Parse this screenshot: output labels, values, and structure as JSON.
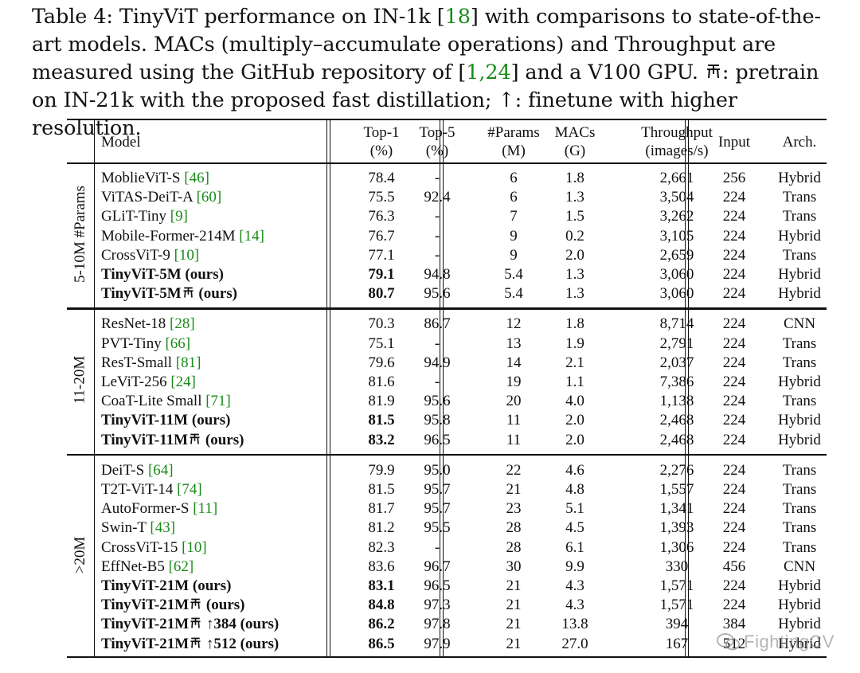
{
  "caption": {
    "p1": "Table 4: TinyViT performance on IN-1k [",
    "ref1": "18",
    "p2": "] with comparisons to state-of-the-art models. MACs (multiply–accumulate operations) and Throughput are measured using the GitHub repository of [",
    "ref2": "1",
    "comma": ",",
    "ref3": "24",
    "p3": "] and a V100 GPU. ",
    "p4": ": pretrain on IN-21k with the proposed fast distillation; ↑: finetune with higher resolution."
  },
  "table": {
    "headers": [
      {
        "line1": "Model",
        "line2": ""
      },
      {
        "line1": "Top-1",
        "line2": "(%)"
      },
      {
        "line1": "Top-5",
        "line2": "(%)"
      },
      {
        "line1": "#Params",
        "line2": "(M)"
      },
      {
        "line1": "MACs",
        "line2": "(G)"
      },
      {
        "line1": "Throughput",
        "line2": "(images/s)"
      },
      {
        "line1": "Input",
        "line2": ""
      },
      {
        "line1": "Arch.",
        "line2": ""
      }
    ],
    "groups": [
      {
        "label": "5-10M #Params",
        "rows": [
          {
            "name": "MoblieViT-S ",
            "ref": "[46]",
            "tail": "",
            "top1": "78.4",
            "top5": "-",
            "params": "6",
            "macs": "1.8",
            "thr": "2,661",
            "input": "256",
            "arch": "Hybrid",
            "bold": false,
            "flask": false
          },
          {
            "name": "ViTAS-DeiT-A ",
            "ref": "[60]",
            "tail": "",
            "top1": "75.5",
            "top5": "92.4",
            "params": "6",
            "macs": "1.3",
            "thr": "3,504",
            "input": "224",
            "arch": "Trans",
            "bold": false,
            "flask": false
          },
          {
            "name": "GLiT-Tiny ",
            "ref": "[9]",
            "tail": "",
            "top1": "76.3",
            "top5": "-",
            "params": "7",
            "macs": "1.5",
            "thr": "3,262",
            "input": "224",
            "arch": "Trans",
            "bold": false,
            "flask": false
          },
          {
            "name": "Mobile-Former-214M ",
            "ref": "[14]",
            "tail": "",
            "top1": "76.7",
            "top5": "-",
            "params": "9",
            "macs": "0.2",
            "thr": "3,105",
            "input": "224",
            "arch": "Hybrid",
            "bold": false,
            "flask": false
          },
          {
            "name": "CrossViT-9 ",
            "ref": "[10]",
            "tail": "",
            "top1": "77.1",
            "top5": "-",
            "params": "9",
            "macs": "2.0",
            "thr": "2,659",
            "input": "224",
            "arch": "Trans",
            "bold": false,
            "flask": false
          },
          {
            "name": "TinyViT-5M (ours)",
            "ref": "",
            "tail": "",
            "top1": "79.1",
            "top5": "94.8",
            "params": "5.4",
            "macs": "1.3",
            "thr": "3,060",
            "input": "224",
            "arch": "Hybrid",
            "bold": true,
            "flask": false
          },
          {
            "name": "TinyViT-5M",
            "ref": "",
            "tail": " (ours)",
            "top1": "80.7",
            "top5": "95.6",
            "params": "5.4",
            "macs": "1.3",
            "thr": "3,060",
            "input": "224",
            "arch": "Hybrid",
            "bold": true,
            "flask": true
          }
        ]
      },
      {
        "label": "11-20M",
        "rows": [
          {
            "name": "ResNet-18 ",
            "ref": "[28]",
            "tail": "",
            "top1": "70.3",
            "top5": "86.7",
            "params": "12",
            "macs": "1.8",
            "thr": "8,714",
            "input": "224",
            "arch": "CNN",
            "bold": false,
            "flask": false
          },
          {
            "name": "PVT-Tiny ",
            "ref": "[66]",
            "tail": "",
            "top1": "75.1",
            "top5": "-",
            "params": "13",
            "macs": "1.9",
            "thr": "2,791",
            "input": "224",
            "arch": "Trans",
            "bold": false,
            "flask": false
          },
          {
            "name": "ResT-Small ",
            "ref": "[81]",
            "tail": "",
            "top1": "79.6",
            "top5": "94.9",
            "params": "14",
            "macs": "2.1",
            "thr": "2,037",
            "input": "224",
            "arch": "Trans",
            "bold": false,
            "flask": false
          },
          {
            "name": "LeViT-256 ",
            "ref": "[24]",
            "tail": "",
            "top1": "81.6",
            "top5": "-",
            "params": "19",
            "macs": "1.1",
            "thr": "7,386",
            "input": "224",
            "arch": "Hybrid",
            "bold": false,
            "flask": false
          },
          {
            "name": "CoaT-Lite Small ",
            "ref": "[71]",
            "tail": "",
            "top1": "81.9",
            "top5": "95.6",
            "params": "20",
            "macs": "4.0",
            "thr": "1,138",
            "input": "224",
            "arch": "Trans",
            "bold": false,
            "flask": false
          },
          {
            "name": "TinyViT-11M (ours)",
            "ref": "",
            "tail": "",
            "top1": "81.5",
            "top5": "95.8",
            "params": "11",
            "macs": "2.0",
            "thr": "2,468",
            "input": "224",
            "arch": "Hybrid",
            "bold": true,
            "flask": false
          },
          {
            "name": "TinyViT-11M",
            "ref": "",
            "tail": " (ours)",
            "top1": "83.2",
            "top5": "96.5",
            "params": "11",
            "macs": "2.0",
            "thr": "2,468",
            "input": "224",
            "arch": "Hybrid",
            "bold": true,
            "flask": true
          }
        ]
      },
      {
        "label": ">20M",
        "rows": [
          {
            "name": "DeiT-S ",
            "ref": "[64]",
            "tail": "",
            "top1": "79.9",
            "top5": "95.0",
            "params": "22",
            "macs": "4.6",
            "thr": "2,276",
            "input": "224",
            "arch": "Trans",
            "bold": false,
            "flask": false
          },
          {
            "name": "T2T-ViT-14 ",
            "ref": "[74]",
            "tail": "",
            "top1": "81.5",
            "top5": "95.7",
            "params": "21",
            "macs": "4.8",
            "thr": "1,557",
            "input": "224",
            "arch": "Trans",
            "bold": false,
            "flask": false
          },
          {
            "name": "AutoFormer-S ",
            "ref": "[11]",
            "tail": "",
            "top1": "81.7",
            "top5": "95.7",
            "params": "23",
            "macs": "5.1",
            "thr": "1,341",
            "input": "224",
            "arch": "Trans",
            "bold": false,
            "flask": false
          },
          {
            "name": "Swin-T ",
            "ref": "[43]",
            "tail": "",
            "top1": "81.2",
            "top5": "95.5",
            "params": "28",
            "macs": "4.5",
            "thr": "1,393",
            "input": "224",
            "arch": "Trans",
            "bold": false,
            "flask": false
          },
          {
            "name": "CrossViT-15 ",
            "ref": "[10]",
            "tail": "",
            "top1": "82.3",
            "top5": "-",
            "params": "28",
            "macs": "6.1",
            "thr": "1,306",
            "input": "224",
            "arch": "Trans",
            "bold": false,
            "flask": false
          },
          {
            "name": "EffNet-B5 ",
            "ref": "[62]",
            "tail": "",
            "top1": "83.6",
            "top5": "96.7",
            "params": "30",
            "macs": "9.9",
            "thr": "330",
            "input": "456",
            "arch": "CNN",
            "bold": false,
            "flask": false
          },
          {
            "name": "TinyViT-21M (ours)",
            "ref": "",
            "tail": "",
            "top1": "83.1",
            "top5": "96.5",
            "params": "21",
            "macs": "4.3",
            "thr": "1,571",
            "input": "224",
            "arch": "Hybrid",
            "bold": true,
            "flask": false
          },
          {
            "name": "TinyViT-21M",
            "ref": "",
            "tail": " (ours)",
            "top1": "84.8",
            "top5": "97.3",
            "params": "21",
            "macs": "4.3",
            "thr": "1,571",
            "input": "224",
            "arch": "Hybrid",
            "bold": true,
            "flask": true
          },
          {
            "name": "TinyViT-21M",
            "ref": "",
            "tail": " ↑384 (ours)",
            "top1": "86.2",
            "top5": "97.8",
            "params": "21",
            "macs": "13.8",
            "thr": "394",
            "input": "384",
            "arch": "Hybrid",
            "bold": true,
            "flask": true
          },
          {
            "name": "TinyViT-21M",
            "ref": "",
            "tail": " ↑512 (ours)",
            "top1": "86.5",
            "top5": "97.9",
            "params": "21",
            "macs": "27.0",
            "thr": "167",
            "input": "512",
            "arch": "Hybrid",
            "bold": true,
            "flask": true
          }
        ]
      }
    ]
  },
  "watermark": "FightingCV",
  "colors": {
    "ref": "#1a8a1a",
    "rule": "#111111"
  }
}
